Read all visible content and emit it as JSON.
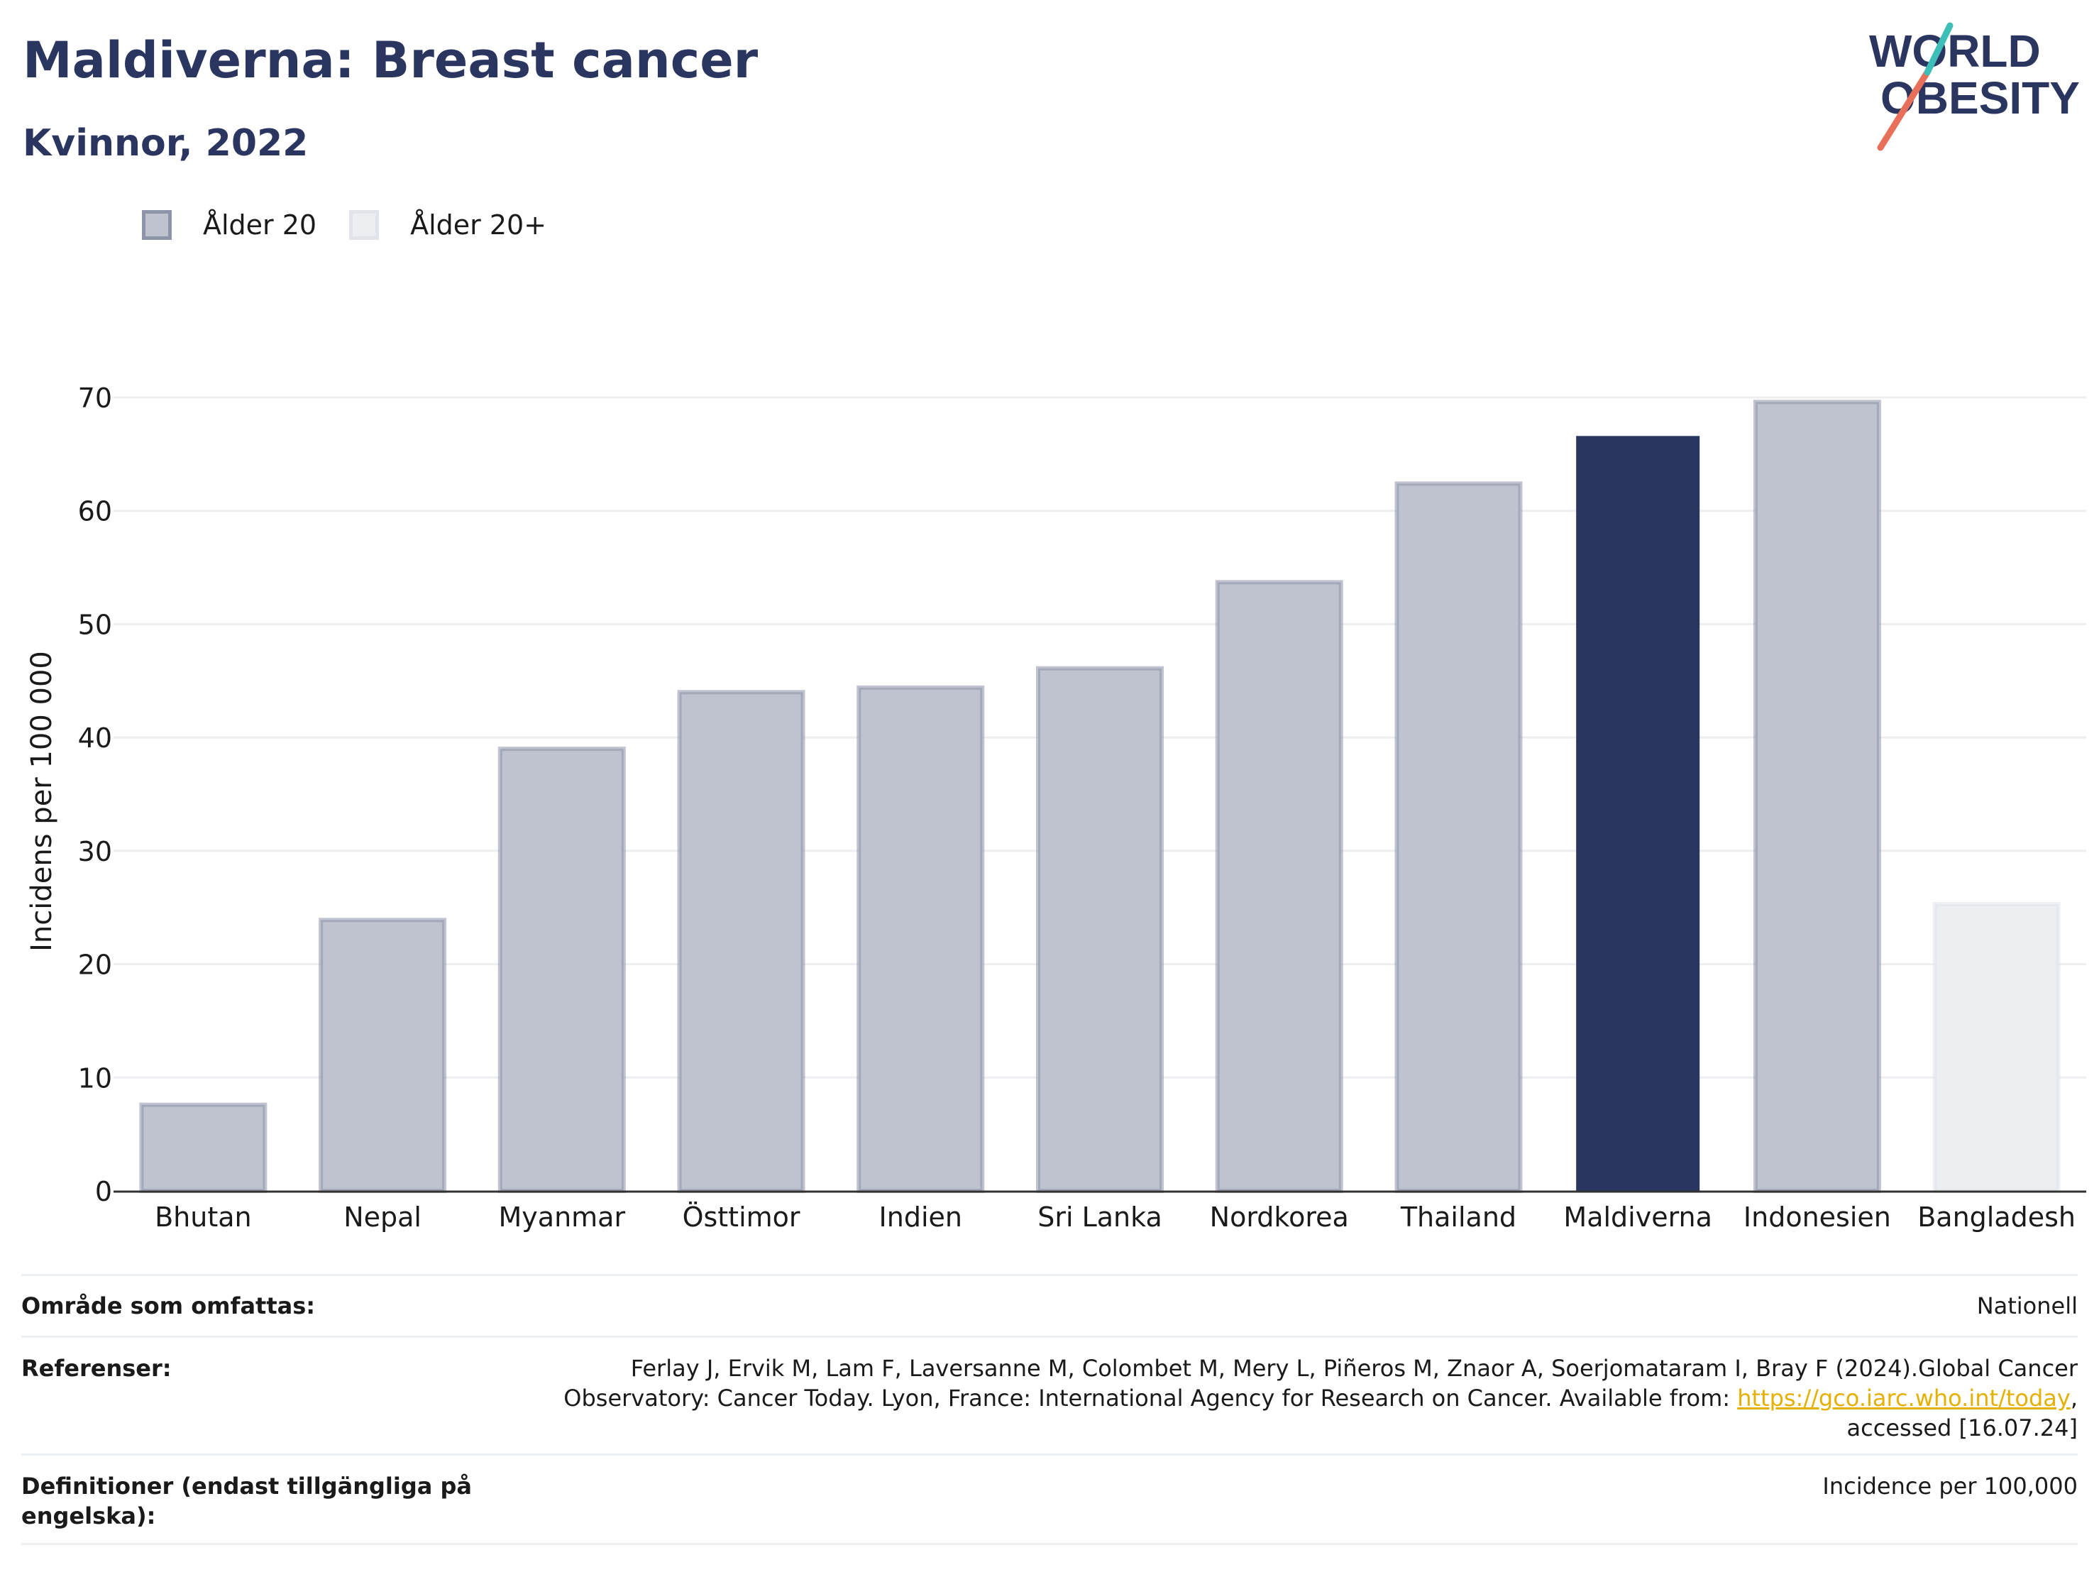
{
  "title": "Maldiverna: Breast cancer",
  "subtitle": "Kvinnor, 2022",
  "logo": {
    "line1": "WORLD",
    "line2": "OBESITY"
  },
  "legend": [
    {
      "label": "Ålder 20",
      "color": "#bfc3cf"
    },
    {
      "label": "Ålder 20+",
      "color": "#eceef2"
    }
  ],
  "colors": {
    "highlight": "#2a3560",
    "bar": "#bfc3cf",
    "bar_border": "#8e94aa",
    "bar_alt": "#eceef2",
    "bar_alt_border": "#e2e4ea"
  },
  "chart_data": {
    "type": "bar",
    "categories": [
      "Bhutan",
      "Nepal",
      "Myanmar",
      "Östtimor",
      "Indien",
      "Sri Lanka",
      "Nordkorea",
      "Thailand",
      "Maldiverna",
      "Indonesien",
      "Bangladesh"
    ],
    "values": [
      7.6,
      23.9,
      39.0,
      44.0,
      44.4,
      46.1,
      53.7,
      62.4,
      66.6,
      69.6,
      25.3
    ],
    "groups": [
      "Ålder 20",
      "Ålder 20",
      "Ålder 20",
      "Ålder 20",
      "Ålder 20",
      "Ålder 20",
      "Ålder 20",
      "Ålder 20",
      "Ålder 20",
      "Ålder 20",
      "Ålder 20+"
    ],
    "highlight": "Maldiverna",
    "ylabel": "Incidens per 100 000",
    "xlabel": "",
    "ylim": [
      0,
      70
    ],
    "yticks": [
      0,
      10,
      20,
      30,
      40,
      50,
      60,
      70
    ],
    "grid": true,
    "legend_position": "top-left"
  },
  "info": {
    "coverage_label": "Område som omfattas:",
    "coverage_value": "Nationell",
    "references_label": "Referenser:",
    "references_text": "Ferlay J, Ervik M, Lam F, Laversanne M, Colombet M, Mery L, Piñeros M, Znaor A, Soerjomataram I, Bray F (2024).Global Cancer Observatory: Cancer Today. Lyon, France: International Agency for Research on Cancer. Available from:",
    "references_link": "https://gco.iarc.who.int/today",
    "references_tail": ", accessed [16.07.24]",
    "definitions_label": "Definitioner (endast tillgängliga på engelska):",
    "definitions_value": "Incidence per 100,000"
  }
}
